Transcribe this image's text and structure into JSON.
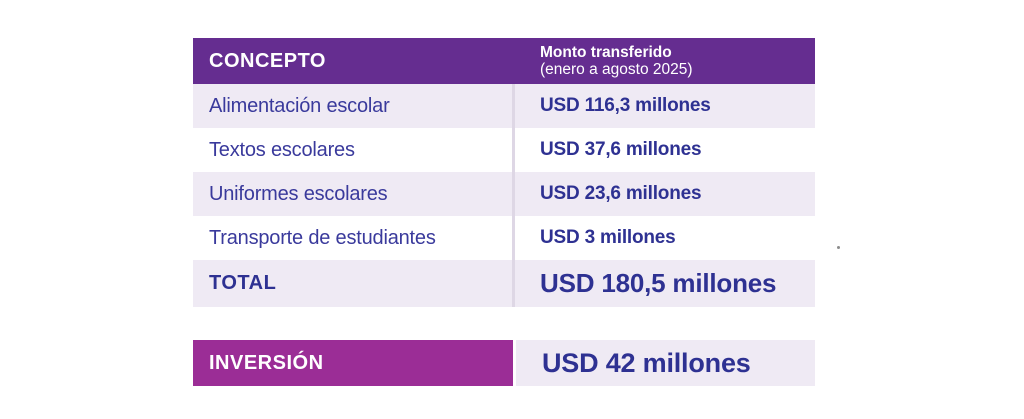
{
  "colors": {
    "header_purple": "#652D90",
    "investment_magenta": "#9B2D96",
    "row_lavender": "#EFEAF4",
    "row_white": "#FFFFFF",
    "column_divider": "#DED7E5",
    "concept_text": "#3A3A9C",
    "value_text": "#2E3192",
    "header_text": "#FFFFFF"
  },
  "table": {
    "header": {
      "concept_label": "CONCEPTO",
      "amount_label_line1": "Monto transferido",
      "amount_label_line2": "(enero a agosto 2025)"
    },
    "rows": [
      {
        "concept": "Alimentación escolar",
        "amount": "USD 116,3 millones"
      },
      {
        "concept": "Textos escolares",
        "amount": "USD 37,6 millones"
      },
      {
        "concept": "Uniformes escolares",
        "amount": "USD 23,6 millones"
      },
      {
        "concept": "Transporte de estudiantes",
        "amount": "USD 3 millones"
      }
    ],
    "total_row": {
      "label": "TOTAL",
      "amount": "USD 180,5 millones"
    }
  },
  "investment_row": {
    "label": "INVERSIÓN",
    "amount": "USD 42 millones"
  },
  "chart_data": {
    "type": "table",
    "title": "Monto transferido (enero a agosto 2025)",
    "columns": [
      "CONCEPTO",
      "Monto transferido (enero a agosto 2025)"
    ],
    "rows": [
      [
        "Alimentación escolar",
        "USD 116,3 millones"
      ],
      [
        "Textos escolares",
        "USD 37,6 millones"
      ],
      [
        "Uniformes escolares",
        "USD 23,6 millones"
      ],
      [
        "Transporte de estudiantes",
        "USD 3 millones"
      ],
      [
        "TOTAL",
        "USD 180,5 millones"
      ],
      [
        "INVERSIÓN",
        "USD 42 millones"
      ]
    ],
    "values_usd_millones": {
      "Alimentación escolar": 116.3,
      "Textos escolares": 37.6,
      "Uniformes escolares": 23.6,
      "Transporte de estudiantes": 3,
      "TOTAL": 180.5,
      "INVERSIÓN": 42
    }
  }
}
